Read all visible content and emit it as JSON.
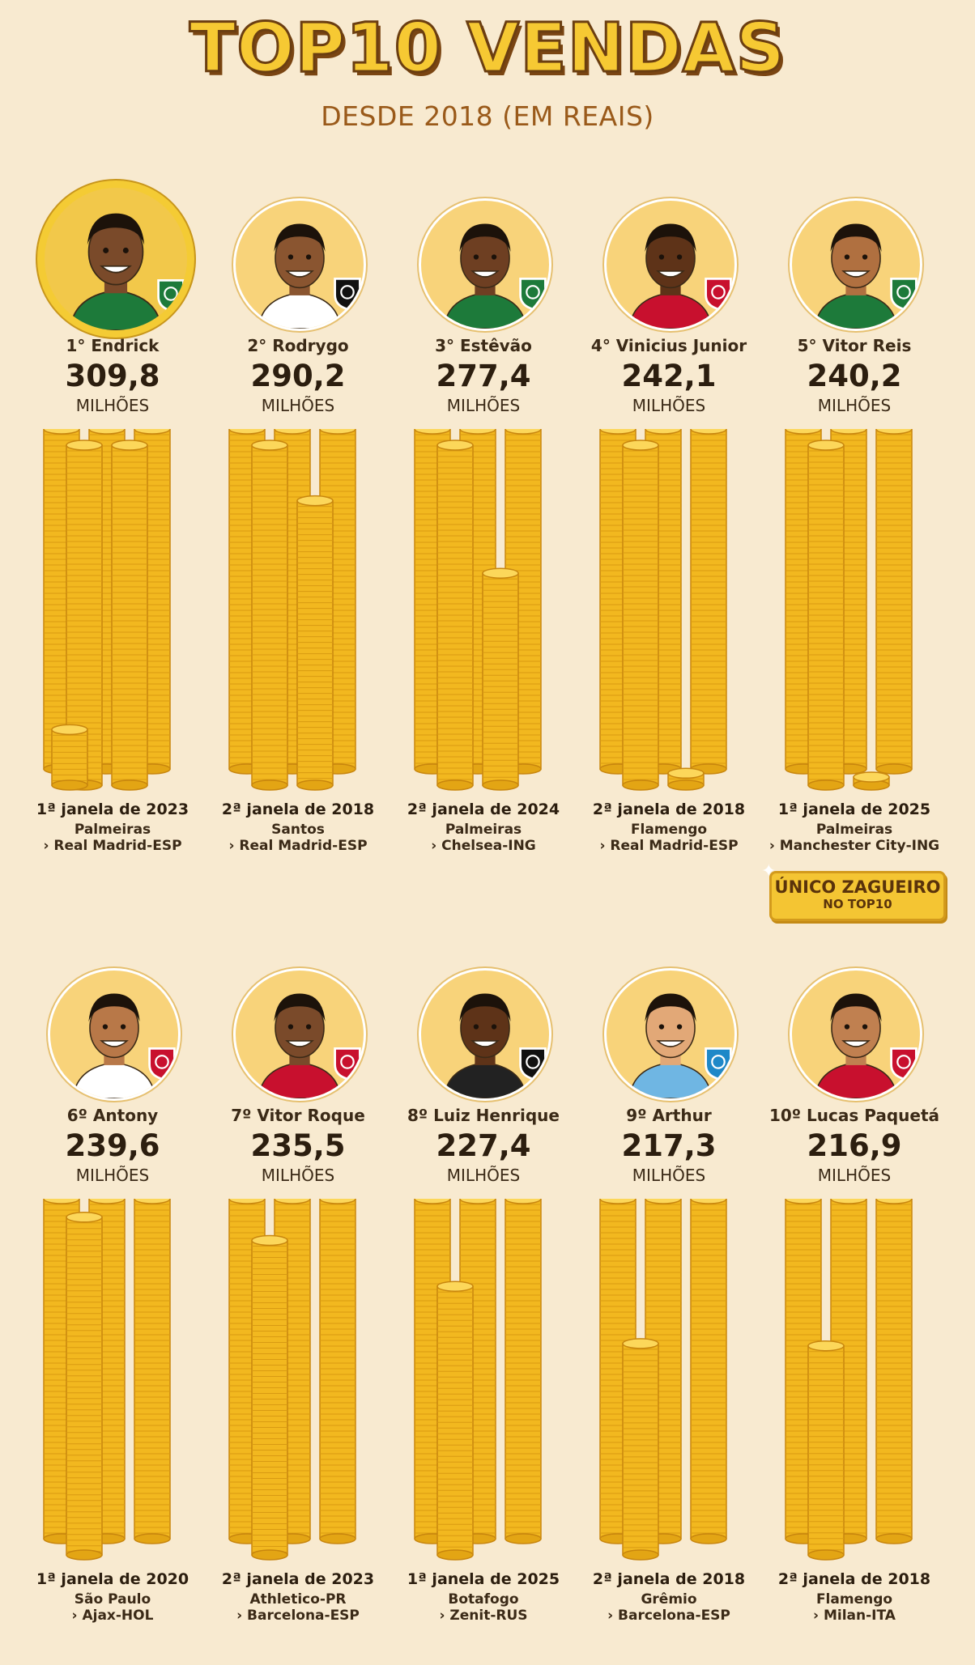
{
  "header": {
    "title": "TOP10 VENDAS",
    "subtitle": "DESDE 2018 (EM REAIS)"
  },
  "unit_label": "MILHÕES",
  "colors": {
    "background": "#f8ead0",
    "title_fill": "#f6c933",
    "title_outline": "#6b3e11",
    "coin": "#f2b81f",
    "note_bg": "#f4c533"
  },
  "players": [
    {
      "rank_label": "1° Endrick",
      "value": "309,8",
      "amount": 309.8,
      "window": "1ª janela de 2023",
      "from_club": "Palmeiras",
      "to_club": "› Real Madrid-ESP",
      "badge": "palmeiras-crest-icon",
      "badge_color": "#1d7a3a",
      "shirt": "#1d7a3a",
      "skin": "#7a4a2a",
      "highlight": true
    },
    {
      "rank_label": "2° Rodrygo",
      "value": "290,2",
      "amount": 290.2,
      "window": "2ª janela de 2018",
      "from_club": "Santos",
      "to_club": "› Real Madrid-ESP",
      "badge": "santos-crest-icon",
      "badge_color": "#111111",
      "shirt": "#ffffff",
      "skin": "#8a5530",
      "highlight": false
    },
    {
      "rank_label": "3° Estêvão",
      "value": "277,4",
      "amount": 277.4,
      "window": "2ª janela de 2024",
      "from_club": "Palmeiras",
      "to_club": "› Chelsea-ING",
      "badge": "palmeiras-crest-icon",
      "badge_color": "#1d7a3a",
      "shirt": "#1d7a3a",
      "skin": "#6e3f22",
      "highlight": false
    },
    {
      "rank_label": "4° Vinicius Junior",
      "value": "242,1",
      "amount": 242.1,
      "window": "2ª janela de 2018",
      "from_club": "Flamengo",
      "to_club": "› Real Madrid-ESP",
      "badge": "flamengo-crest-icon",
      "badge_color": "#c8102e",
      "shirt": "#c8102e",
      "skin": "#5e3318",
      "highlight": false
    },
    {
      "rank_label": "5° Vitor Reis",
      "value": "240,2",
      "amount": 240.2,
      "window": "1ª janela de 2025",
      "from_club": "Palmeiras",
      "to_club": "› Manchester City-ING",
      "badge": "palmeiras-crest-icon",
      "badge_color": "#1d7a3a",
      "shirt": "#1d7a3a",
      "skin": "#b07040",
      "highlight": false
    },
    {
      "rank_label": "6º Antony",
      "value": "239,6",
      "amount": 239.6,
      "window": "1ª janela de 2020",
      "from_club": "São Paulo",
      "to_club": "› Ajax-HOL",
      "badge": "sao-paulo-crest-icon",
      "badge_color": "#c8102e",
      "shirt": "#ffffff",
      "skin": "#b87848",
      "highlight": false
    },
    {
      "rank_label": "7º Vitor Roque",
      "value": "235,5",
      "amount": 235.5,
      "window": "2ª janela de 2023",
      "from_club": "Athletico-PR",
      "to_club": "› Barcelona-ESP",
      "badge": "athletico-crest-icon",
      "badge_color": "#c8102e",
      "shirt": "#c8102e",
      "skin": "#7a4a2a",
      "highlight": false
    },
    {
      "rank_label": "8º Luiz Henrique",
      "value": "227,4",
      "amount": 227.4,
      "window": "1ª janela de 2025",
      "from_club": "Botafogo",
      "to_club": "› Zenit-RUS",
      "badge": "botafogo-crest-icon",
      "badge_color": "#111111",
      "shirt": "#222222",
      "skin": "#5e3318",
      "highlight": false
    },
    {
      "rank_label": "9º Arthur",
      "value": "217,3",
      "amount": 217.3,
      "window": "2ª janela de 2018",
      "from_club": "Grêmio",
      "to_club": "› Barcelona-ESP",
      "badge": "gremio-crest-icon",
      "badge_color": "#1e88c8",
      "shirt": "#6fb6e3",
      "skin": "#e2a877",
      "highlight": false
    },
    {
      "rank_label": "10º Lucas Paquetá",
      "value": "216,9",
      "amount": 216.9,
      "window": "2ª janela de 2018",
      "from_club": "Flamengo",
      "to_club": "› Milan-ITA",
      "badge": "flamengo-crest-icon",
      "badge_color": "#c8102e",
      "shirt": "#c8102e",
      "skin": "#c08050",
      "highlight": false
    }
  ],
  "note": {
    "line1": "ÚNICO ZAGUEIRO",
    "line2": "NO TOP10"
  }
}
